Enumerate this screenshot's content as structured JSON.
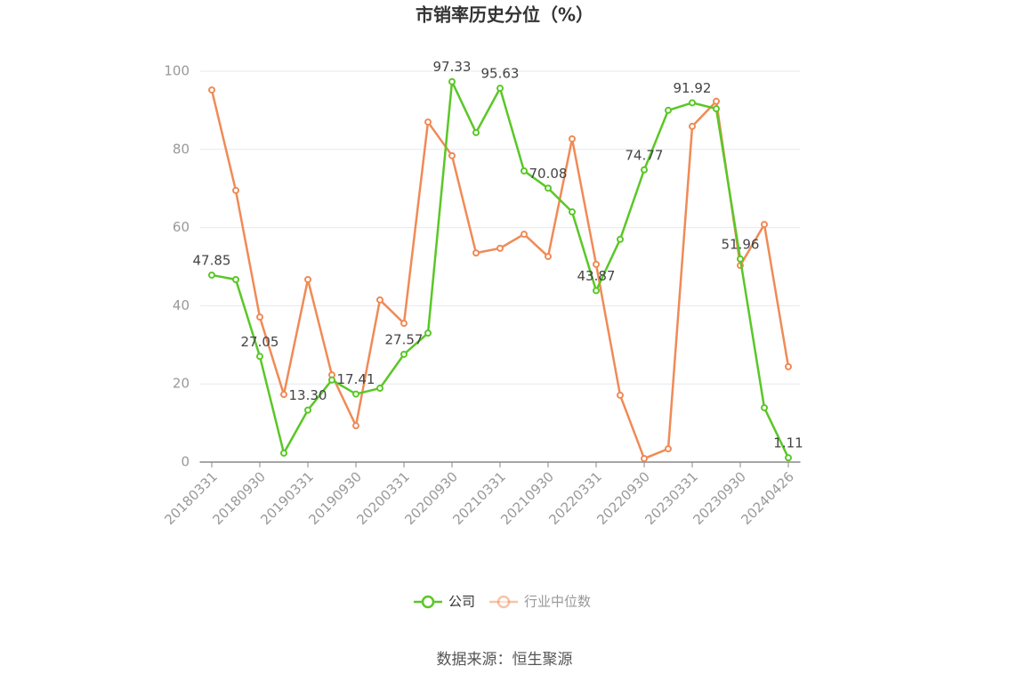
{
  "chart_data": {
    "type": "line",
    "title": "市销率历史分位（%）",
    "categories": [
      "20180331",
      null,
      "20180930",
      null,
      "20190331",
      null,
      "20190930",
      null,
      "20200331",
      null,
      "20200930",
      null,
      "20210331",
      null,
      "20210930",
      null,
      "20220331",
      null,
      "20220930",
      null,
      "20230331",
      null,
      "20230930",
      null,
      "20240426"
    ],
    "series": [
      {
        "name": "公司",
        "color": "#5ac727",
        "values": [
          47.85,
          46.7,
          27.05,
          2.3,
          13.3,
          21,
          17.41,
          18.9,
          27.57,
          33,
          97.33,
          84.3,
          95.63,
          74.5,
          70.08,
          64,
          43.87,
          57,
          74.77,
          90,
          91.92,
          90.4,
          51.96,
          13.9,
          1.11
        ],
        "value_labels": [
          "47.85",
          null,
          "27.05",
          null,
          "13.30",
          null,
          "17.41",
          null,
          "27.57",
          null,
          "97.33",
          null,
          "95.63",
          null,
          "70.08",
          null,
          "43.87",
          null,
          "74.77",
          null,
          "91.92",
          null,
          "51.96",
          null,
          "1.11"
        ]
      },
      {
        "name": "行业中位数",
        "color": "#f08a56",
        "values": [
          95.2,
          69.5,
          37.1,
          17.3,
          46.7,
          22.3,
          9.3,
          41.5,
          35.5,
          87,
          78.4,
          53.5,
          54.7,
          58.3,
          52.6,
          82.7,
          50.6,
          17.1,
          0.9,
          3.4,
          85.9,
          92.3,
          50.3,
          60.8,
          24.4
        ]
      }
    ],
    "ylim": [
      0,
      100
    ],
    "yticks": [
      0,
      20,
      40,
      60,
      80,
      100
    ],
    "grid": true,
    "legend": "bottom",
    "source": "数据来源：恒生聚源"
  }
}
